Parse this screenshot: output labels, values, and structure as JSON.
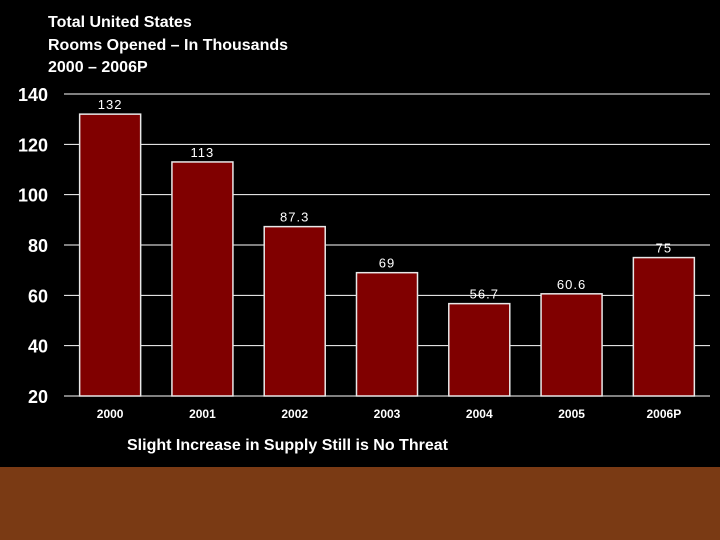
{
  "colors": {
    "background": "#000000",
    "bar_fill": "#800000",
    "bar_stroke": "#e8e8e8",
    "gridline": "#ffffff",
    "text": "#ffffff",
    "footer_band": "#7a3a14"
  },
  "caption": "Slight Increase in Supply Still is No Threat",
  "chart_data": {
    "type": "bar",
    "title_lines": [
      "Total United States",
      "Rooms Opened  – In Thousands",
      "2000 – 2006P"
    ],
    "categories": [
      "2000",
      "2001",
      "2002",
      "2003",
      "2004",
      "2005",
      "2006P"
    ],
    "values": [
      132,
      113,
      87.3,
      69,
      56.7,
      60.6,
      75
    ],
    "data_labels": [
      "132",
      "113",
      "87.3",
      "69",
      "56.7",
      "60.6",
      "75"
    ],
    "ylim": [
      20,
      140
    ],
    "yticks": [
      20,
      40,
      60,
      80,
      100,
      120,
      140
    ],
    "grid": true,
    "xlabel": "",
    "ylabel": ""
  }
}
